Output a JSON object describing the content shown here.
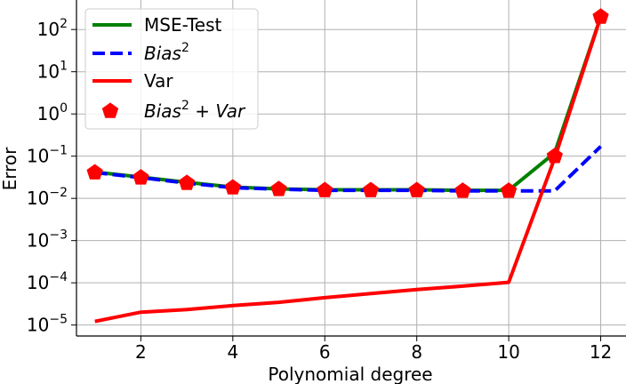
{
  "chart_data": {
    "type": "line",
    "xlabel": "Polynomial degree",
    "ylabel": "Error",
    "y_scale": "log",
    "xlim": [
      0.6,
      12.55
    ],
    "ylim": [
      5.5e-06,
      500
    ],
    "grid": true,
    "legend_placement": "top-left",
    "x": [
      1,
      2,
      3,
      4,
      5,
      6,
      7,
      8,
      9,
      10,
      11,
      12
    ],
    "x_ticks": [
      2,
      4,
      6,
      8,
      10,
      12
    ],
    "y_ticks": [
      {
        "value": 1e-05,
        "base": "10",
        "exp": "−5"
      },
      {
        "value": 0.0001,
        "base": "10",
        "exp": "−4"
      },
      {
        "value": 0.001,
        "base": "10",
        "exp": "−3"
      },
      {
        "value": 0.01,
        "base": "10",
        "exp": "−2"
      },
      {
        "value": 0.1,
        "base": "10",
        "exp": "−1"
      },
      {
        "value": 1,
        "base": "10",
        "exp": "0"
      },
      {
        "value": 10,
        "base": "10",
        "exp": "1"
      },
      {
        "value": 100,
        "base": "10",
        "exp": "2"
      }
    ],
    "series": [
      {
        "name": "MSE-Test",
        "style": "solid",
        "color": "#008000",
        "values": [
          0.042,
          0.032,
          0.024,
          0.0185,
          0.0168,
          0.016,
          0.016,
          0.016,
          0.0155,
          0.0155,
          0.12,
          200
        ]
      },
      {
        "name": "Bias",
        "name_sup": "2",
        "style": "dashed",
        "color": "#0000ff",
        "values": [
          0.041,
          0.031,
          0.023,
          0.018,
          0.0165,
          0.0155,
          0.0155,
          0.0155,
          0.015,
          0.015,
          0.015,
          0.17
        ]
      },
      {
        "name": "Var",
        "style": "solid",
        "color": "#ff0000",
        "values": [
          1.22e-05,
          2.02e-05,
          2.32e-05,
          2.88e-05,
          3.45e-05,
          4.45e-05,
          5.55e-05,
          6.95e-05,
          8.35e-05,
          0.000103,
          0.09,
          200
        ]
      },
      {
        "name": "Bias",
        "name_sup": "2",
        "name_rest": " + Var",
        "style": "markers",
        "marker": "pentagon",
        "color": "#ff0000",
        "values": [
          0.041,
          0.031,
          0.023,
          0.018,
          0.0165,
          0.0155,
          0.0155,
          0.0155,
          0.015,
          0.015,
          0.1,
          200
        ]
      }
    ]
  }
}
